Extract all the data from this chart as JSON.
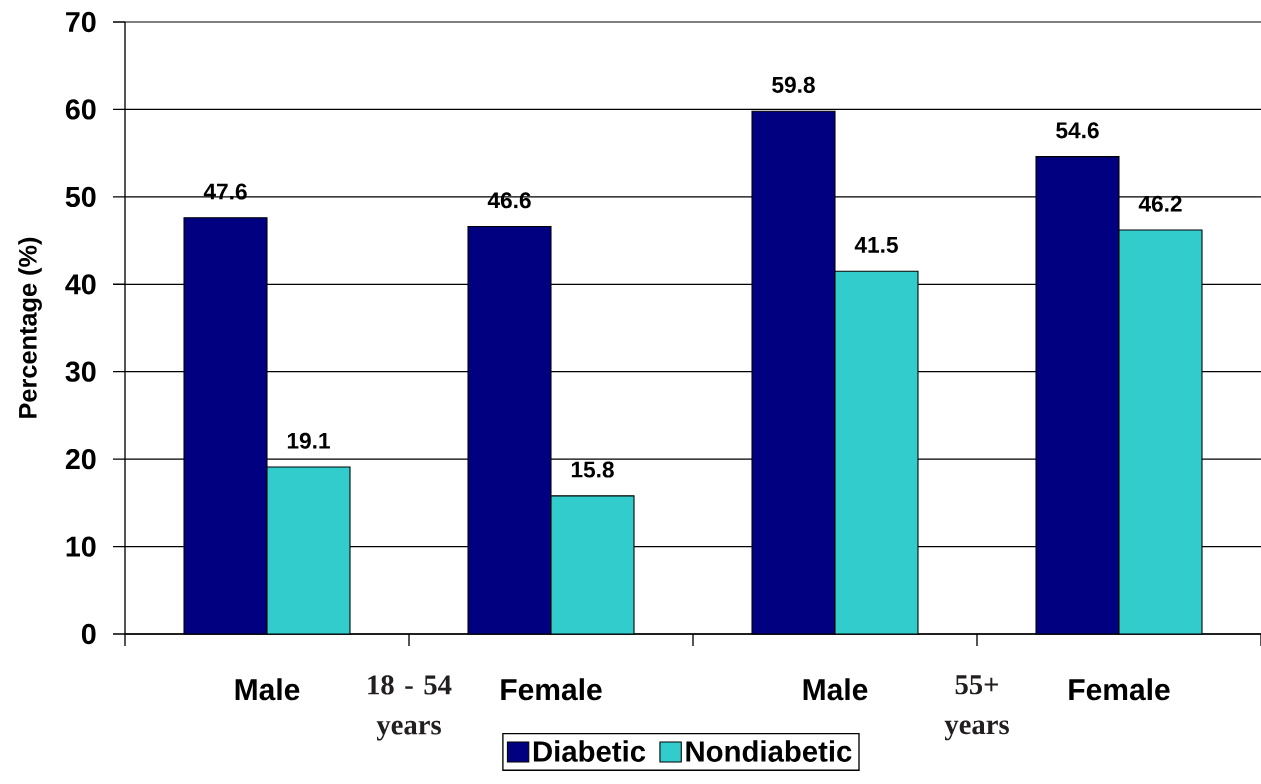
{
  "chart_data": {
    "type": "bar",
    "ylabel": "Percentage (%)",
    "categories": [
      "Male",
      "Female",
      "Male",
      "Female"
    ],
    "series": [
      {
        "name": "Diabetic",
        "color": "#000080",
        "values": [
          47.6,
          46.6,
          59.8,
          54.6
        ]
      },
      {
        "name": "Nondiabetic",
        "color": "#33cccc",
        "values": [
          19.1,
          15.8,
          41.5,
          46.2
        ]
      }
    ],
    "ylim": [
      0,
      70
    ],
    "yticks": [
      0,
      10,
      20,
      30,
      40,
      50,
      60,
      70
    ],
    "grid": "y",
    "legend": "bottom",
    "data_labels": true,
    "annotations": [
      "18 - 54 years",
      "55+ years"
    ]
  }
}
